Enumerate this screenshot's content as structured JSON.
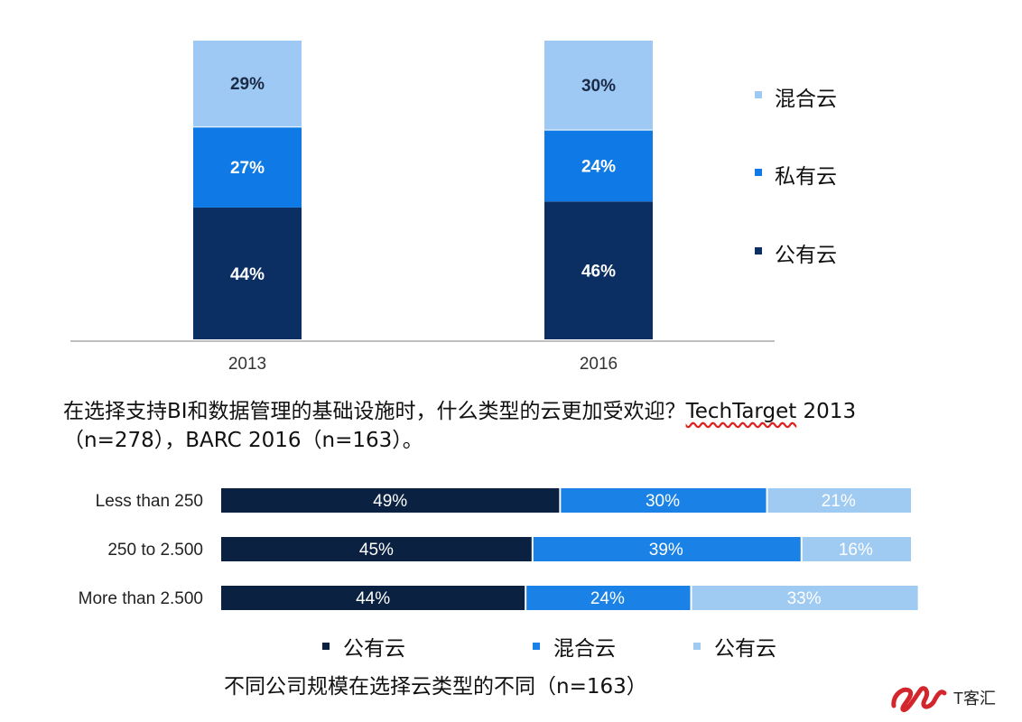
{
  "chart_data": [
    {
      "type": "bar",
      "stacked": true,
      "orientation": "vertical",
      "categories": [
        "2013",
        "2016"
      ],
      "series": [
        {
          "name": "公有云",
          "values": [
            44,
            46
          ],
          "labels": [
            "44%",
            "46%"
          ],
          "color": "#0b2f63"
        },
        {
          "name": "私有云",
          "values": [
            27,
            24
          ],
          "labels": [
            "27%",
            "24%"
          ],
          "color": "#0f7ae5"
        },
        {
          "name": "混合云",
          "values": [
            29,
            30
          ],
          "labels": [
            "29%",
            "30%"
          ],
          "color": "#9ec9f4"
        }
      ],
      "legend_order": [
        "混合云",
        "私有云",
        "公有云"
      ],
      "legend_placement": "right",
      "ylim": [
        0,
        100
      ],
      "grid": false
    },
    {
      "type": "bar",
      "stacked": true,
      "orientation": "horizontal",
      "categories": [
        "Less than 250",
        "250 to 2.500",
        "More than 2.500"
      ],
      "series": [
        {
          "name": "公有云",
          "values": [
            49,
            45,
            44
          ],
          "labels": [
            "49%",
            "45%",
            "44%"
          ],
          "color": "#0a2141"
        },
        {
          "name": "混合云",
          "values": [
            30,
            39,
            24
          ],
          "labels": [
            "30%",
            "39%",
            "24%"
          ],
          "color": "#1a82e6"
        },
        {
          "name": "公有云",
          "values": [
            21,
            16,
            33
          ],
          "labels": [
            "21%",
            "16%",
            "33%"
          ],
          "color": "#9fcaf2"
        }
      ],
      "legend_placement": "bottom",
      "xlim": [
        0,
        100
      ],
      "grid": false
    }
  ],
  "captions": {
    "top_line1_prefix": "在选择支持BI和数据管理的基础设施时，什么类型的云更加受欢迎？",
    "top_line1_tt": "TechTarget",
    "top_line1_suffix": " 2013",
    "top_line2": "（n=278），BARC 2016（n=163）。",
    "bottom": "不同公司规模在选择云类型的不同（n=163）"
  },
  "logo": {
    "text": "T客汇",
    "color": "#d2262c"
  }
}
